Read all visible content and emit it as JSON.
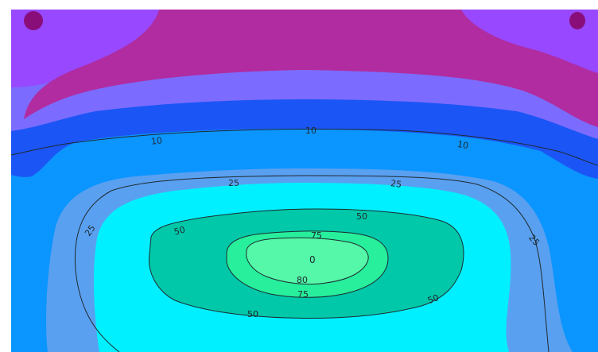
{
  "chart_data": {
    "type": "contour",
    "title": "",
    "xlabel": "",
    "ylabel": "",
    "levels": [
      10,
      25,
      50,
      75,
      80
    ],
    "fill_colors": {
      "top_magenta": "#b02ca0",
      "violet": "#9848ff",
      "periwinkle": "#7b6cff",
      "blue": "#1c55f5",
      "sky": "#0b95ff",
      "light_blue": "#5aa0f0",
      "cyan": "#00f0ff",
      "teal": "#00c8a8",
      "green": "#27ef9c",
      "mint": "#54f8a8",
      "dark_spot": "#8a0e7a"
    },
    "line_color": "#1e2a30",
    "contour_labels": [
      {
        "text": "10"
      },
      {
        "text": "10"
      },
      {
        "text": "10"
      },
      {
        "text": "25"
      },
      {
        "text": "25"
      },
      {
        "text": "25"
      },
      {
        "text": "25"
      },
      {
        "text": "50"
      },
      {
        "text": "50"
      },
      {
        "text": "50"
      },
      {
        "text": "50"
      },
      {
        "text": "75"
      },
      {
        "text": "75"
      },
      {
        "text": "80"
      }
    ],
    "center_label": "0"
  }
}
